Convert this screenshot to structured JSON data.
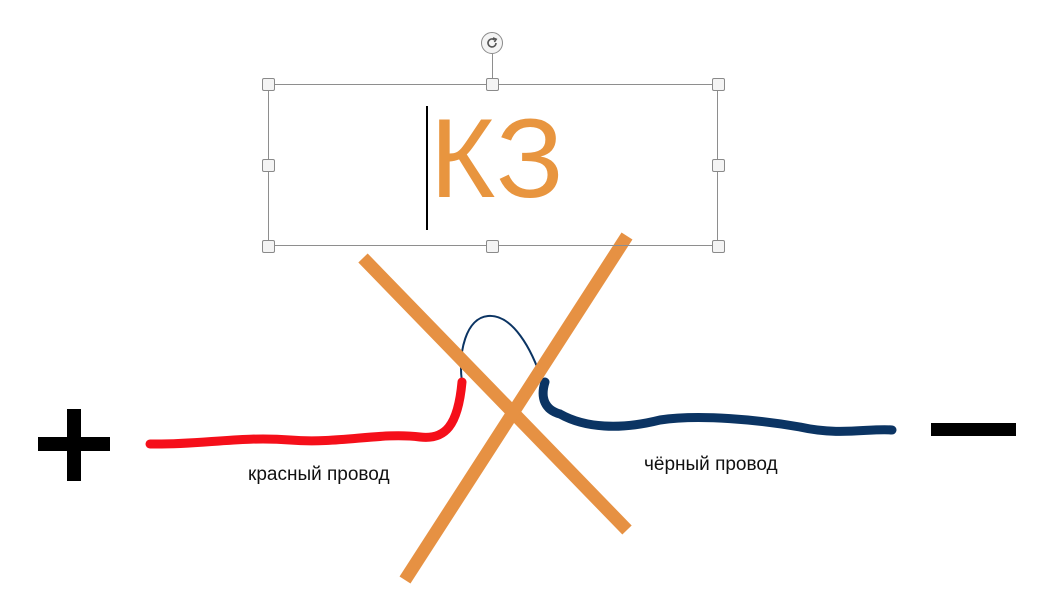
{
  "text_box": {
    "text": "КЗ"
  },
  "labels": {
    "red_wire": "красный провод",
    "black_wire": "чёрный провод"
  },
  "colors": {
    "text_orange": "#e8953f",
    "cross_orange": "#e69143",
    "red_wire": "#f50f1a",
    "black_wire": "#0b3463",
    "bridge_wire": "#0b3463",
    "terminal": "#000000",
    "selection": "#8e8e8e"
  },
  "icons": {
    "rotate": "rotate-icon",
    "plus": "plus-sign",
    "minus": "minus-sign"
  }
}
